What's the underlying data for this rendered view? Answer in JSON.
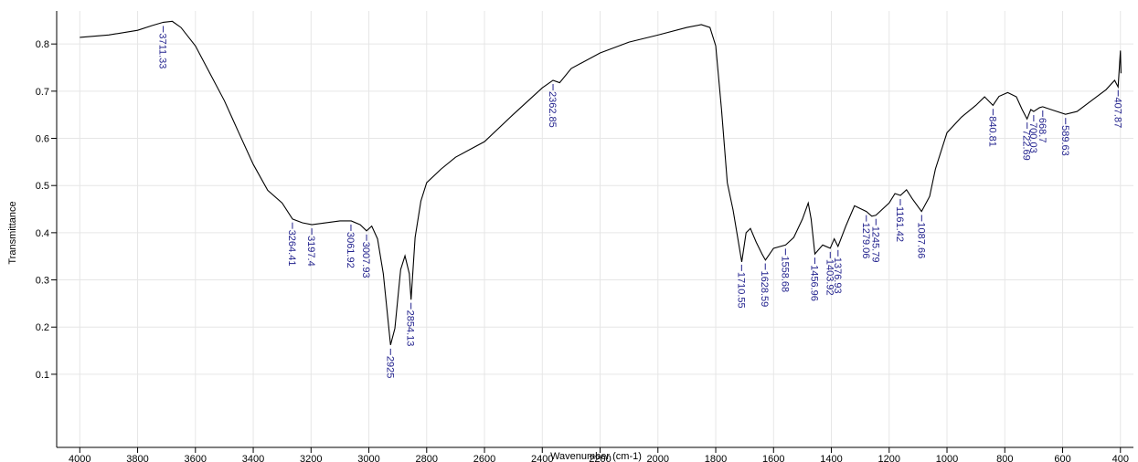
{
  "chart_data": {
    "type": "line",
    "xlabel": "Wavenumber (cm-1)",
    "ylabel": "Transmittance",
    "xlim": [
      4080,
      355
    ],
    "ylim": [
      -0.055,
      0.87
    ],
    "xticks": [
      4000,
      3800,
      3600,
      3400,
      3200,
      3000,
      2800,
      2600,
      2400,
      2200,
      2000,
      1800,
      1600,
      1400,
      1200,
      1000,
      800,
      600,
      400
    ],
    "yticks": [
      0.1,
      0.2,
      0.3,
      0.4,
      0.5,
      0.6,
      0.7,
      0.8
    ],
    "grid": true,
    "color": "#000000",
    "annotation_color": "#23238e",
    "x": [
      4000,
      3900,
      3800,
      3750,
      3711,
      3680,
      3650,
      3600,
      3550,
      3500,
      3450,
      3400,
      3350,
      3300,
      3264,
      3230,
      3197,
      3150,
      3100,
      3061,
      3030,
      3008,
      2990,
      2970,
      2950,
      2925,
      2910,
      2890,
      2875,
      2860,
      2854,
      2840,
      2820,
      2800,
      2750,
      2700,
      2600,
      2500,
      2400,
      2363,
      2340,
      2300,
      2200,
      2100,
      2000,
      1900,
      1850,
      1820,
      1800,
      1780,
      1760,
      1740,
      1710,
      1695,
      1680,
      1660,
      1640,
      1628,
      1600,
      1558,
      1530,
      1500,
      1480,
      1470,
      1457,
      1430,
      1404,
      1390,
      1377,
      1350,
      1320,
      1279,
      1260,
      1246,
      1200,
      1180,
      1161,
      1140,
      1120,
      1088,
      1060,
      1040,
      1000,
      950,
      900,
      870,
      841,
      820,
      790,
      760,
      740,
      723,
      710,
      700,
      680,
      669,
      640,
      590,
      550,
      500,
      450,
      420,
      408,
      400,
      398
    ],
    "values": [
      0.814,
      0.819,
      0.829,
      0.839,
      0.846,
      0.848,
      0.835,
      0.796,
      0.738,
      0.68,
      0.612,
      0.545,
      0.49,
      0.463,
      0.429,
      0.421,
      0.417,
      0.421,
      0.425,
      0.425,
      0.417,
      0.404,
      0.414,
      0.387,
      0.313,
      0.162,
      0.197,
      0.322,
      0.351,
      0.313,
      0.258,
      0.39,
      0.467,
      0.506,
      0.535,
      0.56,
      0.593,
      0.651,
      0.707,
      0.723,
      0.718,
      0.748,
      0.781,
      0.804,
      0.819,
      0.835,
      0.841,
      0.835,
      0.796,
      0.661,
      0.506,
      0.448,
      0.338,
      0.4,
      0.409,
      0.38,
      0.355,
      0.342,
      0.367,
      0.374,
      0.39,
      0.429,
      0.463,
      0.429,
      0.355,
      0.374,
      0.367,
      0.387,
      0.371,
      0.414,
      0.457,
      0.445,
      0.435,
      0.437,
      0.463,
      0.483,
      0.479,
      0.491,
      0.472,
      0.445,
      0.477,
      0.535,
      0.612,
      0.645,
      0.67,
      0.688,
      0.67,
      0.689,
      0.697,
      0.688,
      0.661,
      0.641,
      0.661,
      0.657,
      0.665,
      0.667,
      0.661,
      0.651,
      0.657,
      0.68,
      0.703,
      0.723,
      0.709,
      0.786,
      0.738
    ],
    "annotations": [
      {
        "x": 3711.33,
        "label": "3711.33"
      },
      {
        "x": 3264.41,
        "label": "3264.41"
      },
      {
        "x": 3197.4,
        "label": "3197.4"
      },
      {
        "x": 3061.92,
        "label": "3061.92"
      },
      {
        "x": 3007.93,
        "label": "3007.93"
      },
      {
        "x": 2925,
        "label": "2925"
      },
      {
        "x": 2854.13,
        "label": "2854.13"
      },
      {
        "x": 2362.85,
        "label": "2362.85"
      },
      {
        "x": 1710.55,
        "label": "1710.55"
      },
      {
        "x": 1628.59,
        "label": "1628.59"
      },
      {
        "x": 1558.68,
        "label": "1558.68"
      },
      {
        "x": 1456.96,
        "label": "1456.96"
      },
      {
        "x": 1403.92,
        "label": "1403.92"
      },
      {
        "x": 1376.93,
        "label": "1376.93"
      },
      {
        "x": 1279.06,
        "label": "1279.06"
      },
      {
        "x": 1245.79,
        "label": "1245.79"
      },
      {
        "x": 1161.42,
        "label": "1161.42"
      },
      {
        "x": 1087.66,
        "label": "1087.66"
      },
      {
        "x": 840.81,
        "label": "840.81"
      },
      {
        "x": 722.69,
        "label": "722.69"
      },
      {
        "x": 700.03,
        "label": "700.03"
      },
      {
        "x": 668.7,
        "label": "668.7"
      },
      {
        "x": 589.63,
        "label": "589.63"
      },
      {
        "x": 407.87,
        "label": "407.87"
      }
    ]
  }
}
